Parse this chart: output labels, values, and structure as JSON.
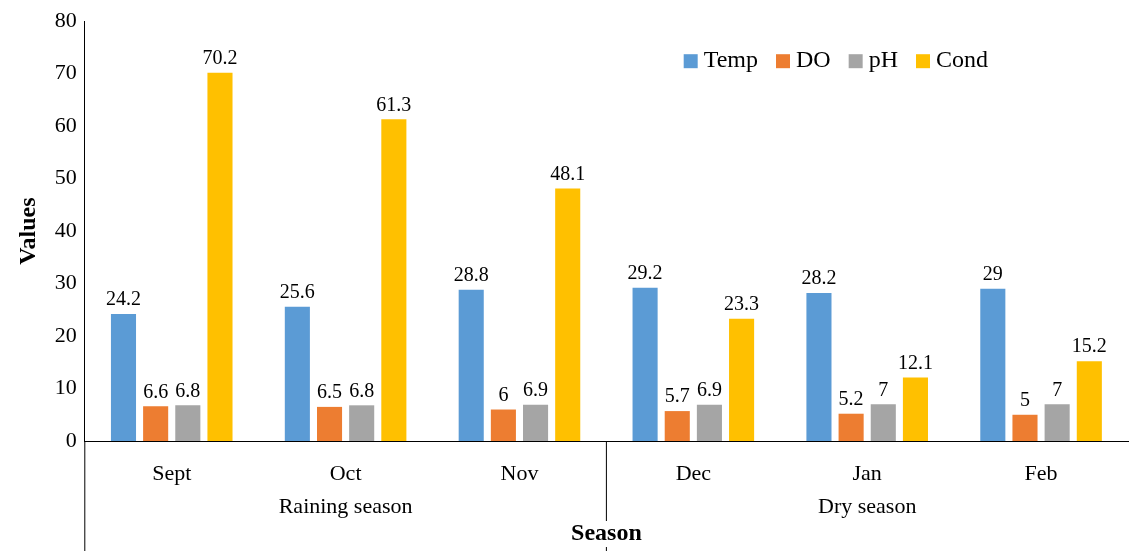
{
  "chart_data": {
    "type": "bar",
    "xlabel": "Season",
    "ylabel": "Values",
    "categories": [
      "Sept",
      "Oct",
      "Nov",
      "Dec",
      "Jan",
      "Feb"
    ],
    "series": [
      {
        "name": "Temp",
        "color": "#5b9bd5",
        "values": [
          24.2,
          25.6,
          28.8,
          29.2,
          28.2,
          29
        ]
      },
      {
        "name": "DO",
        "color": "#ed7d31",
        "values": [
          6.6,
          6.5,
          6,
          5.7,
          5.2,
          5
        ]
      },
      {
        "name": "pH",
        "color": "#a5a5a5",
        "values": [
          6.8,
          6.8,
          6.9,
          6.9,
          7,
          7
        ]
      },
      {
        "name": "Cond",
        "color": "#ffc000",
        "values": [
          70.2,
          61.3,
          48.1,
          23.3,
          12.1,
          15.2
        ]
      }
    ],
    "ylim": [
      0,
      80
    ],
    "yticks": [
      0,
      10,
      20,
      30,
      40,
      50,
      60,
      70,
      80
    ],
    "grid": false,
    "legend": "top right",
    "data_labels": true,
    "annotations": [
      "Raining season",
      "Dry season"
    ]
  }
}
